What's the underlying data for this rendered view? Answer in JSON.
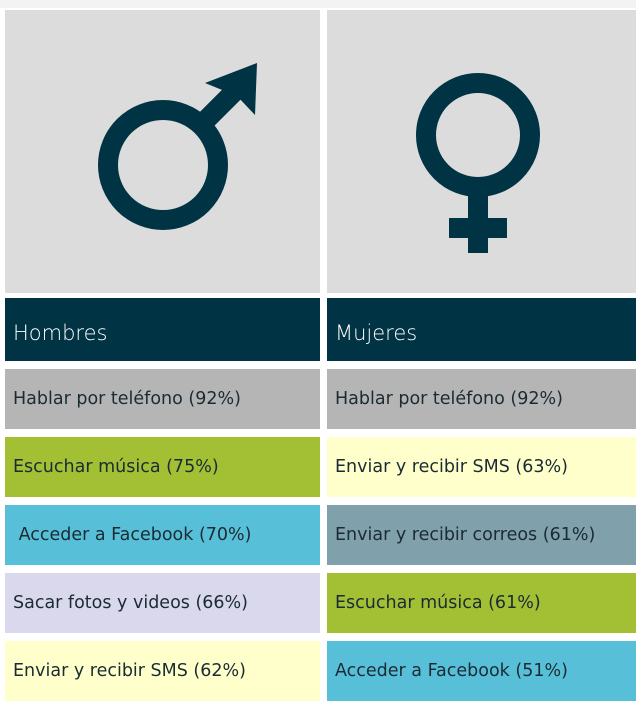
{
  "columns": [
    {
      "title": "Hombres",
      "rows": [
        "Hablar por teléfono (92%)",
        "Escuchar música (75%)",
        " Acceder a Facebook (70%)",
        "Sacar fotos y videos (66%)",
        "Enviar y recibir SMS (62%)"
      ]
    },
    {
      "title": "Mujeres",
      "rows": [
        "Hablar por teléfono (92%)",
        "Enviar y recibir SMS (63%)",
        "Enviar y recibir correos (61%)",
        "Escuchar música (61%)",
        "Acceder a Facebook (51%)"
      ]
    }
  ]
}
